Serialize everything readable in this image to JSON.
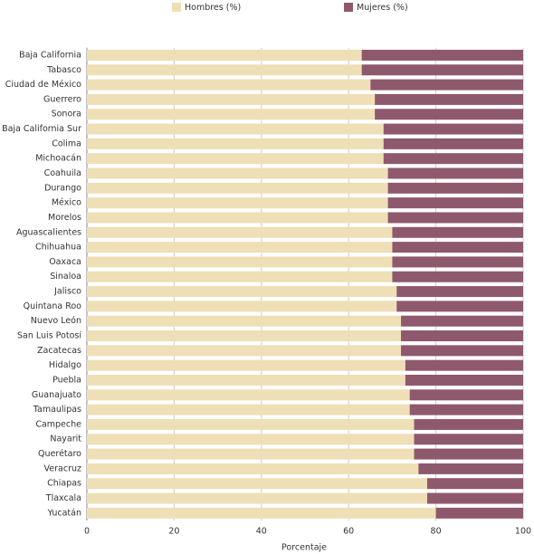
{
  "chart_data": {
    "type": "stacked_barh",
    "categories": [
      "Baja California",
      "Tabasco",
      "Ciudad de México",
      "Guerrero",
      "Sonora",
      "Baja California Sur",
      "Colima",
      "Michoacán",
      "Coahuila",
      "Durango",
      "México",
      "Morelos",
      "Aguascalientes",
      "Chihuahua",
      "Oaxaca",
      "Sinaloa",
      "Jalisco",
      "Quintana Roo",
      "Nuevo León",
      "San Luis Potosí",
      "Zacatecas",
      "Hidalgo",
      "Puebla",
      "Guanajuato",
      "Tamaulipas",
      "Campeche",
      "Nayarit",
      "Querétaro",
      "Veracruz",
      "Chiapas",
      "Tlaxcala",
      "Yucatán"
    ],
    "series": [
      {
        "name": "Hombres (%)",
        "color": "#efdfb6",
        "values": [
          63,
          63,
          65,
          66,
          66,
          68,
          68,
          68,
          69,
          69,
          69,
          69,
          70,
          70,
          70,
          70,
          71,
          71,
          72,
          72,
          72,
          73,
          73,
          74,
          74,
          75,
          75,
          75,
          76,
          78,
          78,
          80
        ]
      },
      {
        "name": "Mujeres (%)",
        "color": "#8e596d",
        "values": [
          37,
          37,
          35,
          34,
          34,
          32,
          32,
          32,
          31,
          31,
          31,
          31,
          30,
          30,
          30,
          30,
          29,
          29,
          28,
          28,
          28,
          27,
          27,
          26,
          26,
          25,
          25,
          25,
          24,
          22,
          22,
          20
        ]
      }
    ],
    "xlabel": "Porcentaje",
    "xlim": [
      0,
      100
    ],
    "xticks": [
      0,
      20,
      40,
      60,
      80,
      100
    ],
    "grid": true,
    "legend": "top"
  }
}
